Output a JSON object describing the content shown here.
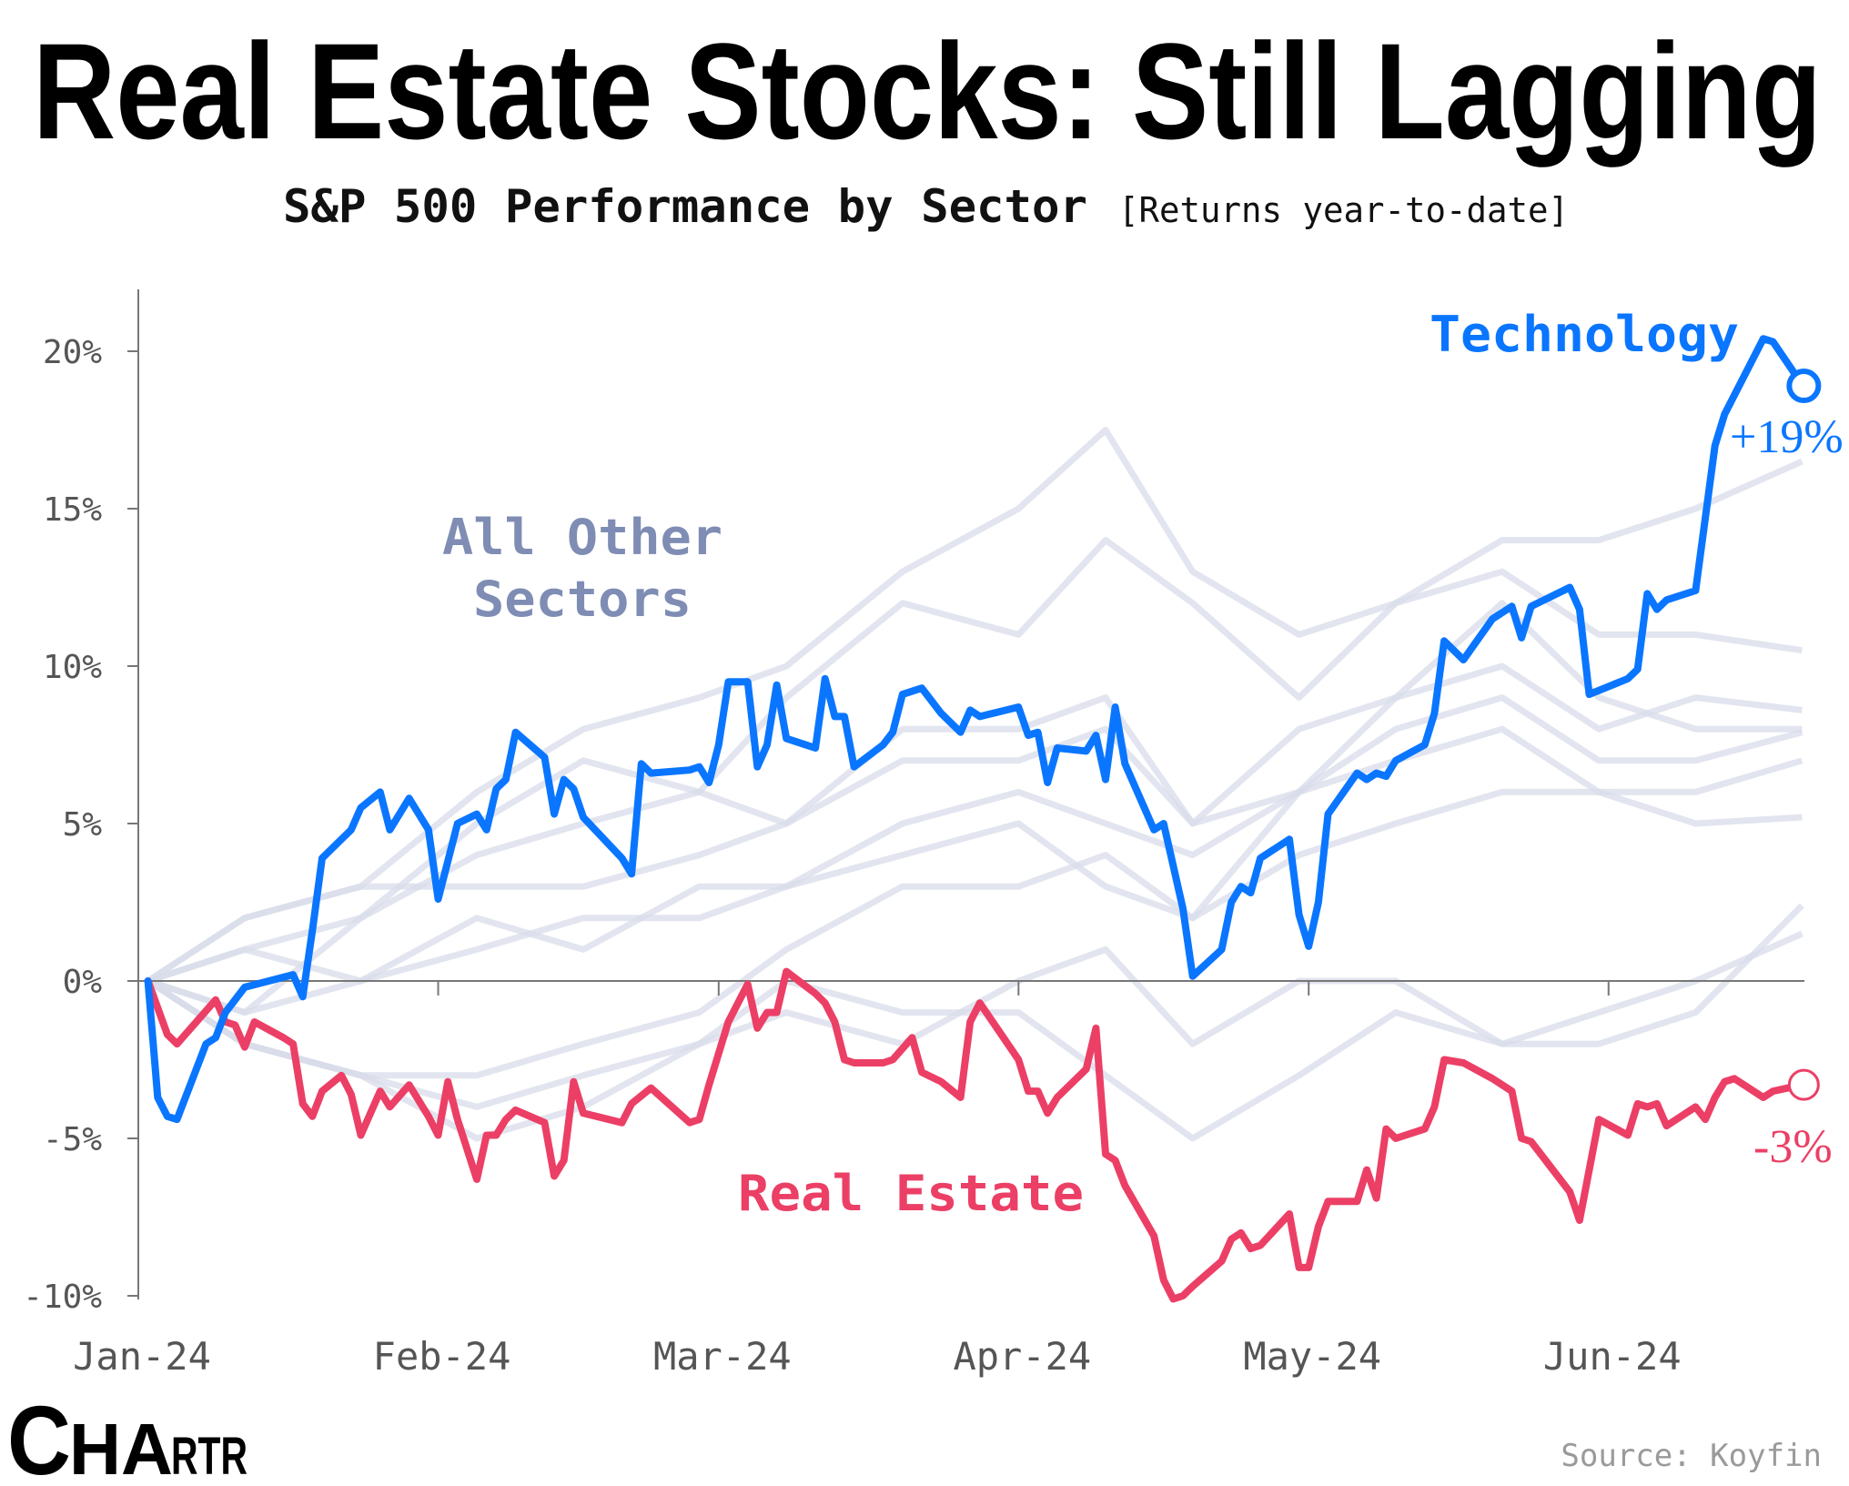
{
  "header": {
    "title": "Real Estate Stocks: Still Lagging",
    "subtitle": "S&P 500 Performance by Sector",
    "subtitle_note": "[Returns year-to-date]"
  },
  "footer": {
    "logo": "CHARTR",
    "source": "Source: Koyfin"
  },
  "colors": {
    "technology": "#0a76ff",
    "real_estate": "#ec3f66",
    "other": "#d8dcea",
    "other_label": "#7f8db4",
    "axis": "#777777"
  },
  "chart_data": {
    "type": "line",
    "title": "Real Estate Stocks: Still Lagging",
    "subtitle": "S&P 500 Performance by Sector [Returns year-to-date]",
    "xlabel": "",
    "ylabel": "",
    "ylim": [
      -10,
      20
    ],
    "xlim": [
      "2024-01-01",
      "2024-06-21"
    ],
    "grid": false,
    "y_ticks": [
      "20%",
      "15%",
      "10%",
      "5%",
      "0%",
      "-5%",
      "-10%"
    ],
    "y_tick_values": [
      20,
      15,
      10,
      5,
      0,
      -5,
      -10
    ],
    "x_ticks": [
      "Jan-24",
      "Feb-24",
      "Mar-24",
      "Apr-24",
      "May-24",
      "Jun-24"
    ],
    "x_tick_dates": [
      "2024-01-01",
      "2024-02-01",
      "2024-03-01",
      "2024-04-01",
      "2024-05-01",
      "2024-06-01"
    ],
    "annotations": {
      "technology_label": "Technology",
      "technology_end": "+19%",
      "real_estate_label": "Real Estate",
      "real_estate_end": "-3%",
      "other_label_line1": "All Other",
      "other_label_line2": "Sectors"
    },
    "series": [
      {
        "name": "Technology",
        "highlight": true,
        "points": [
          [
            "2024-01-02",
            0
          ],
          [
            "2024-01-03",
            -3.7
          ],
          [
            "2024-01-04",
            -4.3
          ],
          [
            "2024-01-05",
            -4.4
          ],
          [
            "2024-01-08",
            -2.0
          ],
          [
            "2024-01-09",
            -1.8
          ],
          [
            "2024-01-10",
            -1.0
          ],
          [
            "2024-01-12",
            -0.2
          ],
          [
            "2024-01-17",
            0.2
          ],
          [
            "2024-01-18",
            -0.5
          ],
          [
            "2024-01-19",
            1.6
          ],
          [
            "2024-01-20",
            3.9
          ],
          [
            "2024-01-22",
            4.5
          ],
          [
            "2024-01-23",
            4.8
          ],
          [
            "2024-01-24",
            5.5
          ],
          [
            "2024-01-26",
            6.0
          ],
          [
            "2024-01-27",
            4.8
          ],
          [
            "2024-01-29",
            5.8
          ],
          [
            "2024-01-31",
            4.8
          ],
          [
            "2024-02-01",
            2.6
          ],
          [
            "2024-02-03",
            5.0
          ],
          [
            "2024-02-05",
            5.3
          ],
          [
            "2024-02-06",
            4.8
          ],
          [
            "2024-02-07",
            6.1
          ],
          [
            "2024-02-08",
            6.4
          ],
          [
            "2024-02-09",
            7.9
          ],
          [
            "2024-02-12",
            7.1
          ],
          [
            "2024-02-13",
            5.3
          ],
          [
            "2024-02-14",
            6.4
          ],
          [
            "2024-02-15",
            6.1
          ],
          [
            "2024-02-16",
            5.2
          ],
          [
            "2024-02-20",
            3.9
          ],
          [
            "2024-02-21",
            3.4
          ],
          [
            "2024-02-22",
            6.9
          ],
          [
            "2024-02-23",
            6.6
          ],
          [
            "2024-02-27",
            6.7
          ],
          [
            "2024-02-28",
            6.8
          ],
          [
            "2024-02-29",
            6.3
          ],
          [
            "2024-03-01",
            7.5
          ],
          [
            "2024-03-02",
            9.5
          ],
          [
            "2024-03-04",
            9.5
          ],
          [
            "2024-03-05",
            6.8
          ],
          [
            "2024-03-06",
            7.5
          ],
          [
            "2024-03-07",
            9.4
          ],
          [
            "2024-03-08",
            7.7
          ],
          [
            "2024-03-11",
            7.4
          ],
          [
            "2024-03-12",
            9.6
          ],
          [
            "2024-03-13",
            8.4
          ],
          [
            "2024-03-14",
            8.4
          ],
          [
            "2024-03-15",
            6.8
          ],
          [
            "2024-03-18",
            7.5
          ],
          [
            "2024-03-19",
            7.9
          ],
          [
            "2024-03-20",
            9.1
          ],
          [
            "2024-03-22",
            9.3
          ],
          [
            "2024-03-24",
            8.5
          ],
          [
            "2024-03-26",
            7.9
          ],
          [
            "2024-03-27",
            8.6
          ],
          [
            "2024-03-28",
            8.4
          ],
          [
            "2024-04-01",
            8.7
          ],
          [
            "2024-04-02",
            7.8
          ],
          [
            "2024-04-03",
            7.9
          ],
          [
            "2024-04-04",
            6.3
          ],
          [
            "2024-04-05",
            7.4
          ],
          [
            "2024-04-08",
            7.3
          ],
          [
            "2024-04-09",
            7.8
          ],
          [
            "2024-04-10",
            6.4
          ],
          [
            "2024-04-11",
            8.7
          ],
          [
            "2024-04-12",
            6.9
          ],
          [
            "2024-04-15",
            4.8
          ],
          [
            "2024-04-16",
            5.0
          ],
          [
            "2024-04-18",
            2.3
          ],
          [
            "2024-04-19",
            0.15
          ],
          [
            "2024-04-22",
            1.0
          ],
          [
            "2024-04-23",
            2.5
          ],
          [
            "2024-04-24",
            3.0
          ],
          [
            "2024-04-25",
            2.8
          ],
          [
            "2024-04-26",
            3.9
          ],
          [
            "2024-04-29",
            4.5
          ],
          [
            "2024-04-30",
            2.1
          ],
          [
            "2024-05-01",
            1.1
          ],
          [
            "2024-05-02",
            2.5
          ],
          [
            "2024-05-03",
            5.3
          ],
          [
            "2024-05-06",
            6.6
          ],
          [
            "2024-05-07",
            6.4
          ],
          [
            "2024-05-08",
            6.6
          ],
          [
            "2024-05-09",
            6.5
          ],
          [
            "2024-05-10",
            7.0
          ],
          [
            "2024-05-13",
            7.5
          ],
          [
            "2024-05-14",
            8.5
          ],
          [
            "2024-05-15",
            10.8
          ],
          [
            "2024-05-17",
            10.2
          ],
          [
            "2024-05-20",
            11.5
          ],
          [
            "2024-05-22",
            11.9
          ],
          [
            "2024-05-23",
            10.9
          ],
          [
            "2024-05-24",
            11.9
          ],
          [
            "2024-05-28",
            12.5
          ],
          [
            "2024-05-29",
            11.8
          ],
          [
            "2024-05-30",
            9.1
          ],
          [
            "2024-06-03",
            9.6
          ],
          [
            "2024-06-04",
            9.9
          ],
          [
            "2024-06-05",
            12.3
          ],
          [
            "2024-06-06",
            11.8
          ],
          [
            "2024-06-07",
            12.1
          ],
          [
            "2024-06-10",
            12.4
          ],
          [
            "2024-06-12",
            17.0
          ],
          [
            "2024-06-13",
            18.0
          ],
          [
            "2024-06-17",
            20.4
          ],
          [
            "2024-06-18",
            20.3
          ],
          [
            "2024-06-20",
            19.4
          ],
          [
            "2024-06-21",
            18.9
          ]
        ]
      },
      {
        "name": "Real Estate",
        "highlight": true,
        "points": [
          [
            "2024-01-02",
            0
          ],
          [
            "2024-01-04",
            -1.7
          ],
          [
            "2024-01-05",
            -2.0
          ],
          [
            "2024-01-07",
            -1.3
          ],
          [
            "2024-01-09",
            -0.6
          ],
          [
            "2024-01-10",
            -1.3
          ],
          [
            "2024-01-11",
            -1.4
          ],
          [
            "2024-01-12",
            -2.1
          ],
          [
            "2024-01-13",
            -1.3
          ],
          [
            "2024-01-16",
            -1.8
          ],
          [
            "2024-01-17",
            -2.0
          ],
          [
            "2024-01-18",
            -3.9
          ],
          [
            "2024-01-19",
            -4.3
          ],
          [
            "2024-01-20",
            -3.5
          ],
          [
            "2024-01-22",
            -3.0
          ],
          [
            "2024-01-23",
            -3.6
          ],
          [
            "2024-01-24",
            -4.9
          ],
          [
            "2024-01-26",
            -3.5
          ],
          [
            "2024-01-27",
            -4.0
          ],
          [
            "2024-01-29",
            -3.3
          ],
          [
            "2024-01-31",
            -4.3
          ],
          [
            "2024-02-01",
            -4.9
          ],
          [
            "2024-02-02",
            -3.2
          ],
          [
            "2024-02-03",
            -4.4
          ],
          [
            "2024-02-05",
            -6.3
          ],
          [
            "2024-02-06",
            -4.9
          ],
          [
            "2024-02-07",
            -4.9
          ],
          [
            "2024-02-08",
            -4.4
          ],
          [
            "2024-02-09",
            -4.1
          ],
          [
            "2024-02-12",
            -4.5
          ],
          [
            "2024-02-13",
            -6.2
          ],
          [
            "2024-02-14",
            -5.7
          ],
          [
            "2024-02-15",
            -3.2
          ],
          [
            "2024-02-16",
            -4.2
          ],
          [
            "2024-02-20",
            -4.5
          ],
          [
            "2024-02-21",
            -3.9
          ],
          [
            "2024-02-23",
            -3.4
          ],
          [
            "2024-02-27",
            -4.5
          ],
          [
            "2024-02-28",
            -4.4
          ],
          [
            "2024-02-29",
            -3.3
          ],
          [
            "2024-03-02",
            -1.3
          ],
          [
            "2024-03-04",
            -0.1
          ],
          [
            "2024-03-05",
            -1.5
          ],
          [
            "2024-03-06",
            -1.0
          ],
          [
            "2024-03-07",
            -1.0
          ],
          [
            "2024-03-08",
            0.3
          ],
          [
            "2024-03-11",
            -0.4
          ],
          [
            "2024-03-12",
            -0.7
          ],
          [
            "2024-03-13",
            -1.3
          ],
          [
            "2024-03-14",
            -2.5
          ],
          [
            "2024-03-15",
            -2.6
          ],
          [
            "2024-03-18",
            -2.6
          ],
          [
            "2024-03-19",
            -2.5
          ],
          [
            "2024-03-21",
            -1.8
          ],
          [
            "2024-03-22",
            -2.9
          ],
          [
            "2024-03-24",
            -3.2
          ],
          [
            "2024-03-26",
            -3.7
          ],
          [
            "2024-03-27",
            -1.3
          ],
          [
            "2024-03-28",
            -0.7
          ],
          [
            "2024-04-01",
            -2.5
          ],
          [
            "2024-04-02",
            -3.5
          ],
          [
            "2024-04-03",
            -3.5
          ],
          [
            "2024-04-04",
            -4.2
          ],
          [
            "2024-04-05",
            -3.7
          ],
          [
            "2024-04-08",
            -2.8
          ],
          [
            "2024-04-09",
            -1.5
          ],
          [
            "2024-04-10",
            -5.5
          ],
          [
            "2024-04-11",
            -5.7
          ],
          [
            "2024-04-12",
            -6.5
          ],
          [
            "2024-04-15",
            -8.1
          ],
          [
            "2024-04-16",
            -9.5
          ],
          [
            "2024-04-17",
            -10.1
          ],
          [
            "2024-04-18",
            -10.0
          ],
          [
            "2024-04-19",
            -9.7
          ],
          [
            "2024-04-22",
            -8.9
          ],
          [
            "2024-04-23",
            -8.2
          ],
          [
            "2024-04-24",
            -8.0
          ],
          [
            "2024-04-25",
            -8.5
          ],
          [
            "2024-04-26",
            -8.4
          ],
          [
            "2024-04-29",
            -7.4
          ],
          [
            "2024-04-30",
            -9.1
          ],
          [
            "2024-05-01",
            -9.1
          ],
          [
            "2024-05-02",
            -7.8
          ],
          [
            "2024-05-03",
            -7.0
          ],
          [
            "2024-05-06",
            -7.0
          ],
          [
            "2024-05-07",
            -6.0
          ],
          [
            "2024-05-08",
            -6.9
          ],
          [
            "2024-05-09",
            -4.7
          ],
          [
            "2024-05-10",
            -5.0
          ],
          [
            "2024-05-13",
            -4.7
          ],
          [
            "2024-05-14",
            -4.0
          ],
          [
            "2024-05-15",
            -2.5
          ],
          [
            "2024-05-17",
            -2.6
          ],
          [
            "2024-05-20",
            -3.1
          ],
          [
            "2024-05-22",
            -3.5
          ],
          [
            "2024-05-23",
            -5.0
          ],
          [
            "2024-05-24",
            -5.1
          ],
          [
            "2024-05-28",
            -6.7
          ],
          [
            "2024-05-29",
            -7.6
          ],
          [
            "2024-05-31",
            -4.4
          ],
          [
            "2024-06-03",
            -4.9
          ],
          [
            "2024-06-04",
            -3.9
          ],
          [
            "2024-06-05",
            -4.0
          ],
          [
            "2024-06-06",
            -3.9
          ],
          [
            "2024-06-07",
            -4.6
          ],
          [
            "2024-06-10",
            -4.0
          ],
          [
            "2024-06-11",
            -4.4
          ],
          [
            "2024-06-12",
            -3.7
          ],
          [
            "2024-06-13",
            -3.2
          ],
          [
            "2024-06-14",
            -3.1
          ],
          [
            "2024-06-17",
            -3.7
          ],
          [
            "2024-06-18",
            -3.5
          ],
          [
            "2024-06-21",
            -3.3
          ]
        ]
      }
    ],
    "other_sectors": {
      "dates": [
        "2024-01-02",
        "2024-01-12",
        "2024-01-24",
        "2024-02-05",
        "2024-02-16",
        "2024-02-28",
        "2024-03-08",
        "2024-03-20",
        "2024-04-01",
        "2024-04-10",
        "2024-04-19",
        "2024-04-30",
        "2024-05-10",
        "2024-05-21",
        "2024-05-31",
        "2024-06-10",
        "2024-06-21"
      ],
      "values": [
        [
          0,
          2,
          3,
          6,
          8,
          9,
          10,
          13,
          15,
          17.5,
          13,
          11,
          12,
          14,
          14,
          15,
          16.5
        ],
        [
          0,
          -1,
          2,
          5,
          7,
          6,
          9,
          12,
          11,
          14,
          12,
          9,
          12,
          13,
          11,
          11,
          10.5
        ],
        [
          0,
          1,
          2,
          4,
          5,
          6,
          5,
          8,
          8,
          9,
          5,
          8,
          9,
          10,
          8,
          9,
          8.6
        ],
        [
          0,
          -2,
          -3,
          -3,
          -2,
          -1,
          1,
          3,
          3,
          4,
          2,
          6,
          9,
          12,
          9,
          8,
          8.0
        ],
        [
          0,
          2,
          3,
          3,
          3,
          4,
          5,
          7,
          7,
          8,
          5,
          6,
          8,
          9,
          7,
          7,
          7.9
        ],
        [
          0,
          -1,
          0,
          1,
          2,
          2,
          3,
          5,
          6,
          5,
          4,
          6,
          7,
          8,
          6,
          5,
          5.2
        ],
        [
          0,
          -2,
          -3,
          -4,
          -3,
          -2,
          -1,
          -2,
          0,
          1,
          -2,
          0,
          0,
          -2,
          -2,
          -1,
          2.4
        ],
        [
          0,
          -2,
          -3,
          -5,
          -4,
          -2,
          0,
          -1,
          -1,
          -3,
          -5,
          -3,
          -1,
          -2,
          -1,
          0,
          1.5
        ],
        [
          0,
          1,
          0,
          2,
          1,
          3,
          3,
          4,
          5,
          3,
          2,
          4,
          5,
          6,
          6,
          6,
          7
        ]
      ]
    }
  }
}
